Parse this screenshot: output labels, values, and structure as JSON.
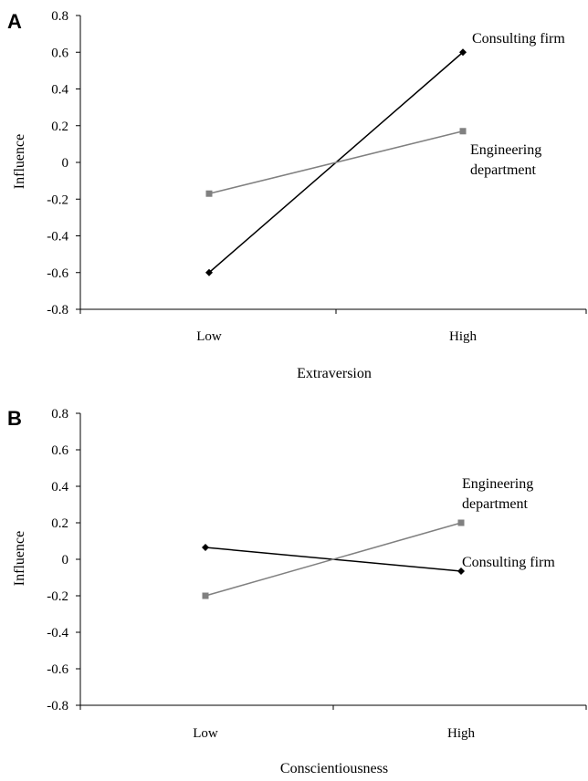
{
  "chart_data": [
    {
      "panel": "A",
      "type": "line",
      "xlabel": "Extraversion",
      "ylabel": "Influence",
      "categories": [
        "Low",
        "High"
      ],
      "ylim": [
        -0.8,
        0.8
      ],
      "yticks": [
        "0.8",
        "0.6",
        "0.4",
        "0.2",
        "0",
        "-0.2",
        "-0.4",
        "-0.6",
        "-0.8"
      ],
      "grid": false,
      "series": [
        {
          "name": "Consulting firm",
          "label_lines": [
            "Consulting firm"
          ],
          "values": [
            -0.6,
            0.6
          ],
          "color": "#000000",
          "marker": "diamond"
        },
        {
          "name": "Engineering department",
          "label_lines": [
            "Engineering",
            "department"
          ],
          "values": [
            -0.17,
            0.17
          ],
          "color": "#808080",
          "marker": "square"
        }
      ]
    },
    {
      "panel": "B",
      "type": "line",
      "xlabel": "Conscientiousness",
      "ylabel": "Influence",
      "categories": [
        "Low",
        "High"
      ],
      "ylim": [
        -0.8,
        0.8
      ],
      "yticks": [
        "0.8",
        "0.6",
        "0.4",
        "0.2",
        "0",
        "-0.2",
        "-0.4",
        "-0.6",
        "-0.8"
      ],
      "grid": false,
      "series": [
        {
          "name": "Consulting firm",
          "label_lines": [
            "Consulting firm"
          ],
          "values": [
            0.065,
            -0.065
          ],
          "color": "#000000",
          "marker": "diamond"
        },
        {
          "name": "Engineering department",
          "label_lines": [
            "Engineering",
            "department"
          ],
          "values": [
            -0.2,
            0.2
          ],
          "color": "#808080",
          "marker": "square"
        }
      ]
    }
  ]
}
